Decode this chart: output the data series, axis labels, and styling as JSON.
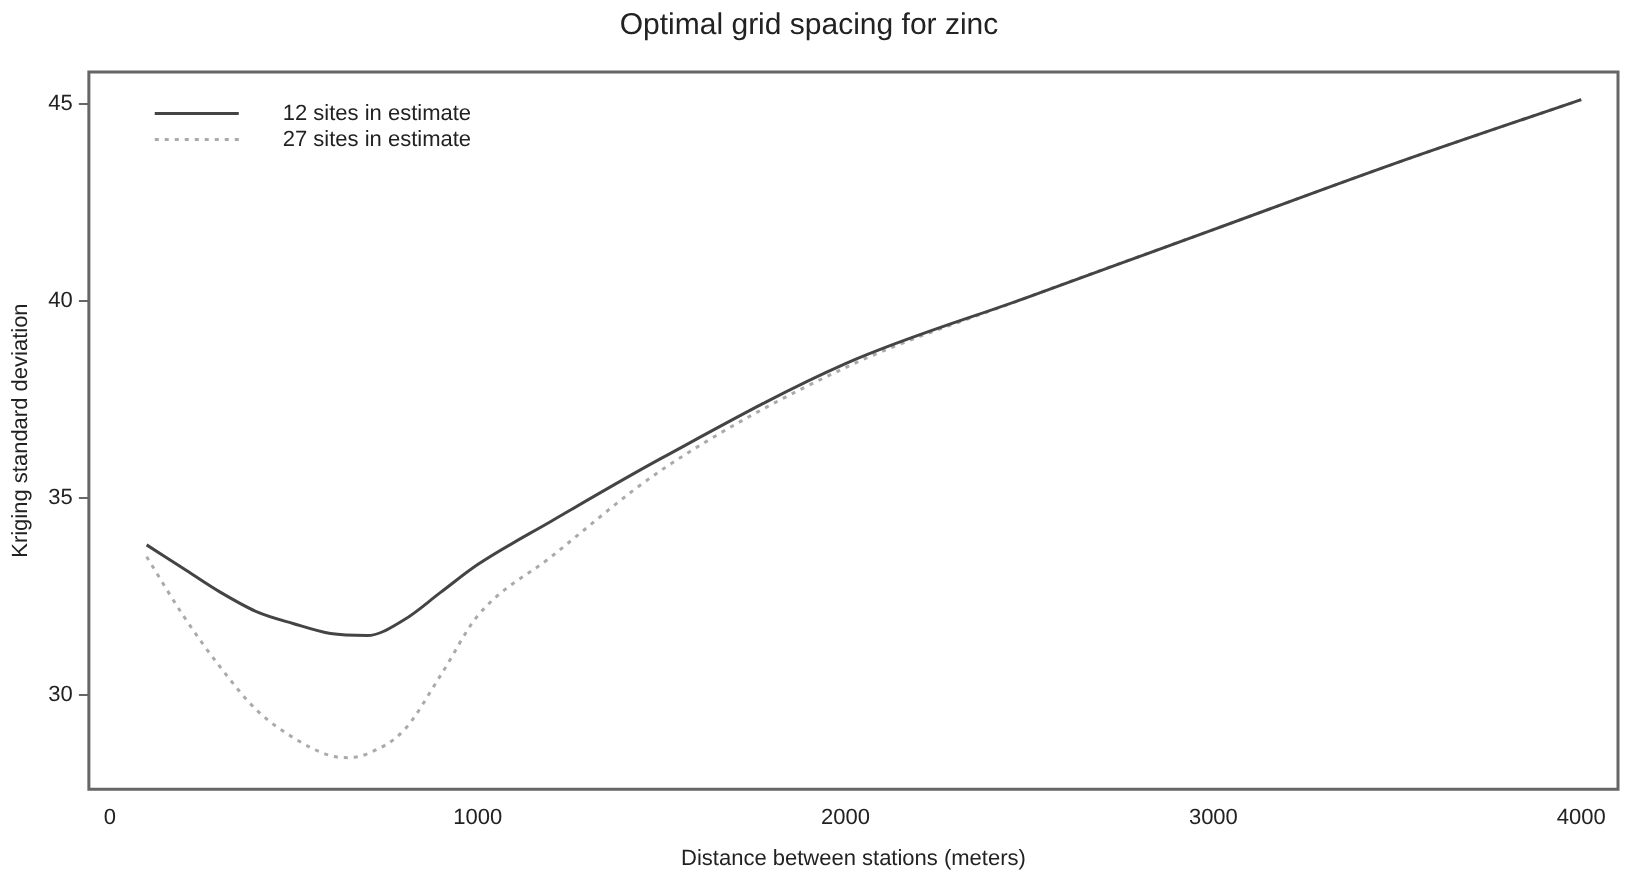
{
  "chart_data": {
    "type": "line",
    "title": "Optimal grid spacing for zinc",
    "xlabel": "Distance between stations (meters)",
    "ylabel": "Kriging standard deviation",
    "xlim": [
      -57,
      4100
    ],
    "xticks": [
      0,
      1000,
      2000,
      3000,
      4000
    ],
    "ylim": [
      27.6,
      45.8
    ],
    "yticks": [
      30,
      35,
      40,
      45
    ],
    "grid": false,
    "legend": "top left",
    "marker": "none",
    "series": [
      {
        "name": "12 sites in estimate",
        "color": "#444444",
        "line_style": "solid",
        "x": [
          100,
          200,
          300,
          400,
          500,
          600,
          700,
          800,
          900,
          1000,
          1200,
          1500,
          2000,
          2500,
          3000,
          3500,
          4000
        ],
        "values": [
          33.8,
          33.2,
          32.6,
          32.1,
          31.8,
          31.55,
          31.5,
          31.9,
          32.6,
          33.3,
          34.4,
          36.0,
          38.4,
          40.1,
          41.8,
          43.5,
          45.1
        ]
      },
      {
        "name": "27 sites in estimate",
        "color": "#aaaaaa",
        "line_style": "dotted",
        "x": [
          100,
          200,
          300,
          400,
          500,
          600,
          650,
          700,
          800,
          900,
          1000,
          1200,
          1500,
          2000,
          2500,
          3000,
          3500,
          4000
        ],
        "values": [
          33.5,
          32.0,
          30.7,
          29.6,
          28.9,
          28.45,
          28.4,
          28.5,
          29.1,
          30.5,
          32.0,
          33.5,
          35.7,
          38.3,
          40.1,
          41.8,
          43.5,
          45.1
        ]
      }
    ]
  }
}
